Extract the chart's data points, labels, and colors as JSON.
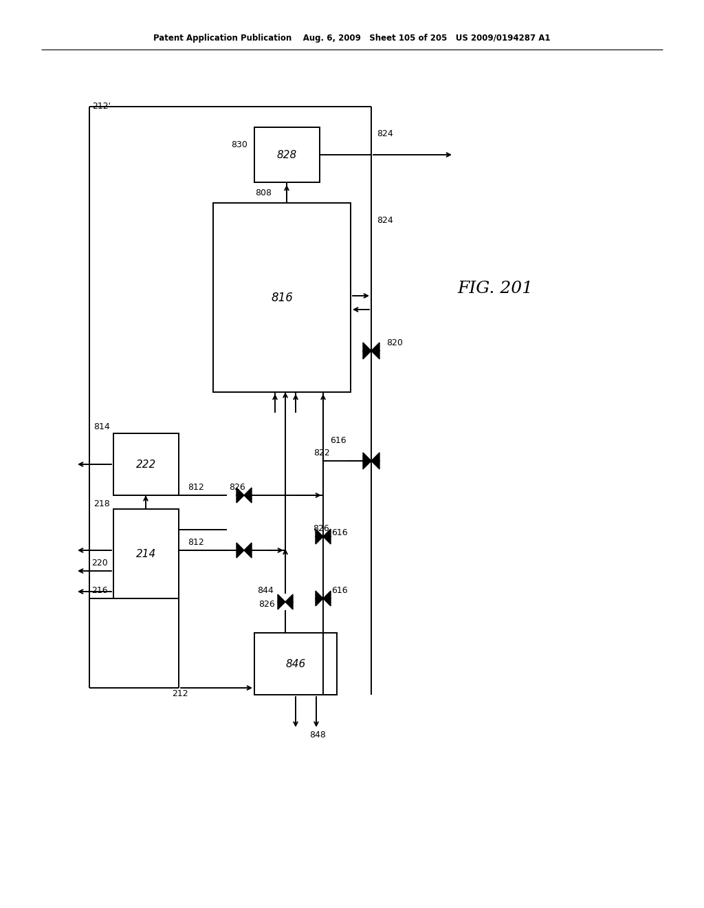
{
  "title": "Patent Application Publication    Aug. 6, 2009   Sheet 105 of 205   US 2009/0194287 A1",
  "fig_label": "FIG. 201",
  "bg": "#ffffff",
  "lc": "#000000"
}
